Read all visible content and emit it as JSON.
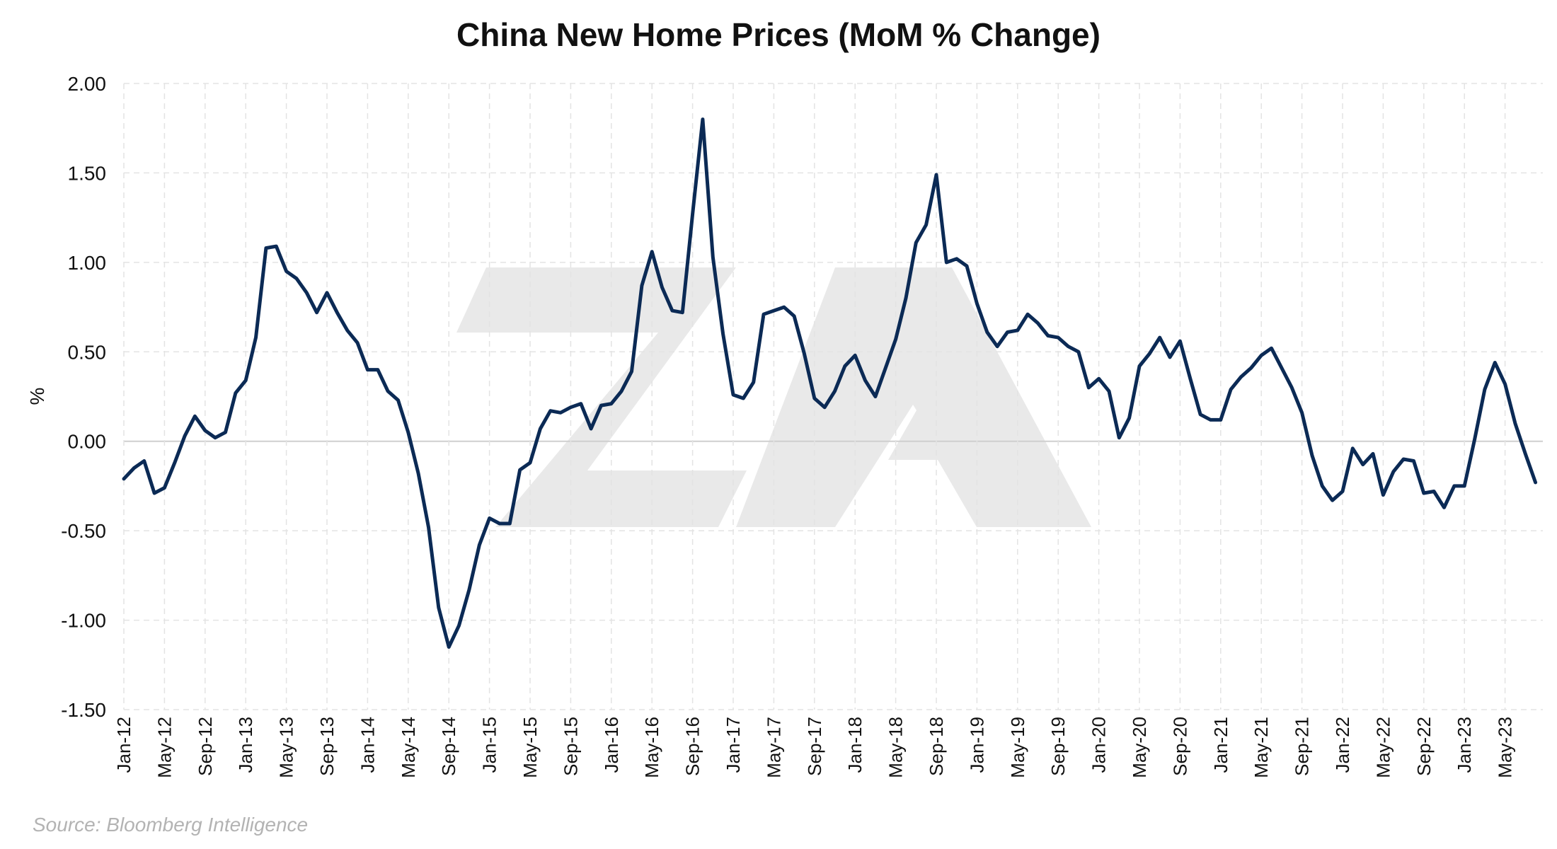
{
  "chart_data": {
    "type": "line",
    "title": "China New Home Prices (MoM % Change)",
    "xlabel": "",
    "ylabel": "%",
    "ylim": [
      -1.5,
      2.0
    ],
    "yticks": [
      "2.00",
      "1.50",
      "1.00",
      "0.50",
      "0.00",
      "-0.50",
      "-1.00",
      "-1.50"
    ],
    "ytick_values": [
      2.0,
      1.5,
      1.0,
      0.5,
      0.0,
      -0.5,
      -1.0,
      -1.5
    ],
    "xticks": [
      "Jan-12",
      "May-12",
      "Sep-12",
      "Jan-13",
      "May-13",
      "Sep-13",
      "Jan-14",
      "May-14",
      "Sep-14",
      "Jan-15",
      "May-15",
      "Sep-15",
      "Jan-16",
      "May-16",
      "Sep-16",
      "Jan-17",
      "May-17",
      "Sep-17",
      "Jan-18",
      "May-18",
      "Sep-18",
      "Jan-19",
      "May-19",
      "Sep-19",
      "Jan-20",
      "May-20",
      "Sep-20",
      "Jan-21",
      "May-21",
      "Sep-21",
      "Jan-22",
      "May-22",
      "Sep-22",
      "Jan-23",
      "May-23"
    ],
    "x_start": "2012-01",
    "x_end": "2023-07",
    "grid": true,
    "series": [
      {
        "color": "#0b2a55",
        "values": [
          -0.21,
          -0.15,
          -0.11,
          -0.29,
          -0.26,
          -0.12,
          0.03,
          0.14,
          0.06,
          0.02,
          0.05,
          0.27,
          0.34,
          0.58,
          1.08,
          1.09,
          0.95,
          0.91,
          0.83,
          0.72,
          0.83,
          0.72,
          0.62,
          0.55,
          0.4,
          0.4,
          0.28,
          0.23,
          0.05,
          -0.18,
          -0.48,
          -0.93,
          -1.15,
          -1.03,
          -0.83,
          -0.58,
          -0.43,
          -0.46,
          -0.46,
          -0.16,
          -0.12,
          0.07,
          0.17,
          0.16,
          0.19,
          0.21,
          0.07,
          0.2,
          0.21,
          0.28,
          0.39,
          0.87,
          1.06,
          0.86,
          0.73,
          0.72,
          1.27,
          1.8,
          1.03,
          0.6,
          0.26,
          0.24,
          0.33,
          0.71,
          0.73,
          0.75,
          0.7,
          0.49,
          0.24,
          0.19,
          0.28,
          0.42,
          0.48,
          0.34,
          0.25,
          0.41,
          0.57,
          0.8,
          1.11,
          1.21,
          1.49,
          1.0,
          1.02,
          0.98,
          0.77,
          0.61,
          0.53,
          0.61,
          0.62,
          0.71,
          0.66,
          0.59,
          0.58,
          0.53,
          0.5,
          0.3,
          0.35,
          0.28,
          0.02,
          0.13,
          0.42,
          0.49,
          0.58,
          0.47,
          0.56,
          0.35,
          0.15,
          0.12,
          0.12,
          0.29,
          0.36,
          0.41,
          0.48,
          0.52,
          0.41,
          0.3,
          0.16,
          -0.08,
          -0.25,
          -0.33,
          -0.28,
          -0.04,
          -0.13,
          -0.07,
          -0.3,
          -0.17,
          -0.1,
          -0.11,
          -0.29,
          -0.28,
          -0.37,
          -0.25,
          -0.25,
          0.01,
          0.29,
          0.44,
          0.32,
          0.1,
          -0.07,
          -0.23
        ]
      }
    ]
  },
  "source": "Source: Bloomberg Intelligence",
  "colors": {
    "line": "#0b2a55",
    "grid": "#e3e3e3",
    "zero_line": "#cfcfcf",
    "watermark": "#e8e8e8"
  }
}
